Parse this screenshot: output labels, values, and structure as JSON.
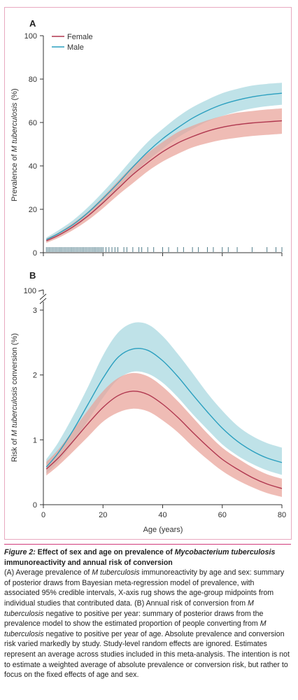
{
  "chart_data": [
    {
      "panel": "A",
      "type": "line",
      "ylabel_pre": "Prevalence of ",
      "ylabel_it": "M tuberculosis",
      "ylabel_post": " (%)",
      "xlabel": "",
      "xlim": [
        0,
        80
      ],
      "ylim": [
        0,
        100
      ],
      "yticks": [
        0,
        20,
        40,
        60,
        80,
        100
      ],
      "xticks": [
        0,
        20,
        40,
        60,
        80
      ],
      "legend": "top-left",
      "x": [
        1,
        5,
        10,
        15,
        20,
        25,
        30,
        35,
        40,
        45,
        50,
        55,
        60,
        65,
        70,
        75,
        80
      ],
      "series": [
        {
          "name": "Female",
          "color": "#b0374f",
          "band_color": "#e9a298",
          "values": [
            5.5,
            8,
            12,
            17,
            23,
            29.5,
            36,
            41.5,
            46.5,
            50.5,
            53.5,
            56,
            57.8,
            59,
            59.8,
            60.3,
            60.8
          ],
          "lower": [
            4.5,
            6.8,
            10.5,
            15,
            20.5,
            26.5,
            32,
            37.5,
            42,
            45.5,
            48.5,
            50.5,
            52,
            53,
            53.8,
            54.3,
            54.8
          ],
          "upper": [
            6.5,
            9.2,
            13.7,
            19,
            25.8,
            33,
            40,
            46,
            51,
            55.5,
            58.5,
            61,
            63,
            64.5,
            65.3,
            66,
            66.5
          ]
        },
        {
          "name": "Male",
          "color": "#2a9fbf",
          "band_color": "#a6d7df",
          "values": [
            6,
            8.8,
            13,
            18.5,
            25,
            32,
            39.5,
            46.5,
            52.5,
            57.5,
            62,
            65.5,
            68.3,
            70.3,
            71.8,
            72.8,
            73.5
          ],
          "lower": [
            5,
            7.5,
            11.3,
            16.5,
            22.5,
            29,
            36,
            42.5,
            48,
            53,
            57,
            60.5,
            63,
            65,
            66.5,
            67.5,
            68.2
          ],
          "upper": [
            7,
            10.3,
            15,
            21,
            28,
            35.5,
            43.5,
            51,
            57,
            62.5,
            67,
            70.5,
            73.5,
            75.5,
            77,
            77.8,
            78.3
          ]
        }
      ],
      "rug_color": "#3e6f7e",
      "rug_x": [
        1,
        1.5,
        2,
        2.5,
        3,
        3.5,
        4,
        4.5,
        5,
        5.5,
        6,
        6.5,
        7,
        7.5,
        8,
        8.5,
        9,
        9.5,
        10,
        10.5,
        11,
        11.5,
        12,
        12.5,
        13,
        13.5,
        14,
        14.5,
        15,
        15.5,
        16,
        16.5,
        17,
        17.5,
        18,
        18.5,
        19,
        19.5,
        20,
        21,
        22,
        23,
        24,
        25,
        27,
        28,
        30,
        32,
        33,
        35,
        37,
        40,
        42,
        45,
        47,
        50,
        52,
        55,
        57,
        60,
        62,
        65,
        70,
        75,
        78,
        80
      ]
    },
    {
      "panel": "B",
      "type": "line",
      "ylabel_pre": "Risk of ",
      "ylabel_it": "M tuberculosis",
      "ylabel_post": " conversion (%)",
      "xlabel": "Age (years)",
      "xlim": [
        0,
        80
      ],
      "ylim": [
        0,
        3
      ],
      "yticks": [
        0,
        1,
        2,
        3
      ],
      "ytick_break_label": "100",
      "xticks": [
        0,
        20,
        40,
        60,
        80
      ],
      "legend": "none",
      "x": [
        1,
        5,
        10,
        15,
        20,
        25,
        30,
        35,
        40,
        45,
        50,
        55,
        60,
        65,
        70,
        75,
        80
      ],
      "series": [
        {
          "name": "Female",
          "color": "#b0374f",
          "band_color": "#e9a298",
          "values": [
            0.55,
            0.72,
            0.98,
            1.25,
            1.5,
            1.68,
            1.75,
            1.7,
            1.55,
            1.35,
            1.12,
            0.9,
            0.7,
            0.55,
            0.42,
            0.32,
            0.25
          ],
          "lower": [
            0.45,
            0.6,
            0.82,
            1.05,
            1.28,
            1.42,
            1.48,
            1.44,
            1.3,
            1.12,
            0.9,
            0.7,
            0.52,
            0.38,
            0.27,
            0.18,
            0.12
          ],
          "upper": [
            0.66,
            0.85,
            1.15,
            1.46,
            1.75,
            1.95,
            2.03,
            1.98,
            1.82,
            1.6,
            1.35,
            1.1,
            0.88,
            0.72,
            0.58,
            0.47,
            0.4
          ]
        },
        {
          "name": "Male",
          "color": "#2a9fbf",
          "band_color": "#a6d7df",
          "values": [
            0.58,
            0.8,
            1.15,
            1.55,
            1.95,
            2.27,
            2.4,
            2.38,
            2.22,
            1.98,
            1.7,
            1.43,
            1.18,
            0.98,
            0.83,
            0.72,
            0.65
          ],
          "lower": [
            0.48,
            0.66,
            0.96,
            1.3,
            1.65,
            1.93,
            2.05,
            2.02,
            1.88,
            1.66,
            1.4,
            1.16,
            0.93,
            0.76,
            0.63,
            0.53,
            0.46
          ],
          "upper": [
            0.7,
            0.96,
            1.37,
            1.82,
            2.3,
            2.65,
            2.8,
            2.78,
            2.6,
            2.33,
            2.03,
            1.72,
            1.45,
            1.22,
            1.06,
            0.95,
            0.88
          ]
        }
      ]
    }
  ],
  "caption": {
    "title_label": "Figure 2:",
    "title_pre": " Effect of sex and age on prevalence of ",
    "title_it": "Mycobacterium tuberculosis",
    "title_post": " immunoreactivity and annual risk of conversion",
    "body_1": "(A) Average prevalence of ",
    "body_1_it": "M tuberculosis",
    "body_2": " immunoreactivity by age and sex: summary of posterior draws from Bayesian meta-regression model of prevalence, with associated 95% credible intervals, X-axis rug shows the age-group midpoints from individual studies that contributed data. (B) Annual risk of conversion from ",
    "body_2_it": "M tuberculosis",
    "body_3": " negative to positive per year: summary of posterior draws from the prevalence model to show the estimated proportion of people converting from ",
    "body_3_it": "M tuberculosis",
    "body_4": " negative to positive per year of age. Absolute prevalence and conversion risk varied markedly by study. Study-level random effects are ignored. Estimates represent an average across studies included in this meta-analysis. The intention is not to estimate a weighted average of absolute prevalence or conversion risk, but rather to focus on the fixed effects of age and sex."
  }
}
